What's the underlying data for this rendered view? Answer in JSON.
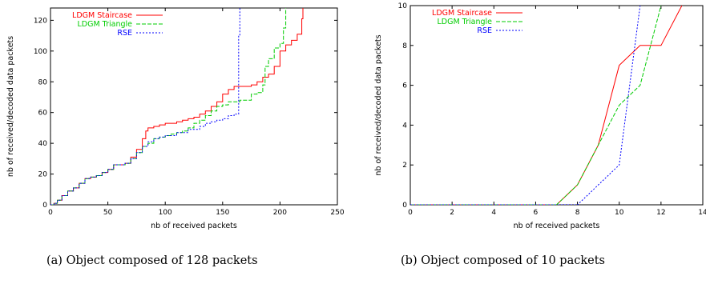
{
  "chart_data": [
    {
      "type": "line",
      "caption": "(a) Object composed of 128 packets",
      "xlabel": "nb of received packets",
      "ylabel": "nb of received/decoded data packets",
      "xlim": [
        0,
        250
      ],
      "ylim": [
        0,
        128
      ],
      "xticks": [
        0,
        50,
        100,
        150,
        200,
        250
      ],
      "yticks": [
        0,
        20,
        40,
        60,
        80,
        100,
        120
      ],
      "grid": false,
      "legend_position": "top-left",
      "series": [
        {
          "name": "LDGM Staircase",
          "color": "#ff0000",
          "dash": "solid",
          "step": true,
          "points": [
            [
              0,
              0
            ],
            [
              3,
              1
            ],
            [
              6,
              3
            ],
            [
              10,
              6
            ],
            [
              15,
              9
            ],
            [
              20,
              11
            ],
            [
              25,
              14
            ],
            [
              30,
              17
            ],
            [
              35,
              18
            ],
            [
              40,
              19
            ],
            [
              45,
              21
            ],
            [
              50,
              23
            ],
            [
              55,
              26
            ],
            [
              60,
              26
            ],
            [
              65,
              27
            ],
            [
              70,
              31
            ],
            [
              75,
              36
            ],
            [
              80,
              43
            ],
            [
              83,
              48
            ],
            [
              85,
              50
            ],
            [
              90,
              51
            ],
            [
              95,
              52
            ],
            [
              100,
              53
            ],
            [
              110,
              54
            ],
            [
              115,
              55
            ],
            [
              120,
              56
            ],
            [
              125,
              57
            ],
            [
              130,
              59
            ],
            [
              135,
              61
            ],
            [
              140,
              64
            ],
            [
              145,
              67
            ],
            [
              150,
              72
            ],
            [
              155,
              75
            ],
            [
              160,
              77
            ],
            [
              170,
              77
            ],
            [
              175,
              78
            ],
            [
              180,
              80
            ],
            [
              185,
              83
            ],
            [
              190,
              85
            ],
            [
              195,
              90
            ],
            [
              200,
              100
            ],
            [
              205,
              104
            ],
            [
              210,
              107
            ],
            [
              215,
              111
            ],
            [
              218,
              111
            ],
            [
              219,
              121
            ],
            [
              220,
              128
            ]
          ]
        },
        {
          "name": "LDGM Triangle",
          "color": "#00cc00",
          "dash": "5,2",
          "step": true,
          "points": [
            [
              0,
              0
            ],
            [
              3,
              1
            ],
            [
              6,
              3
            ],
            [
              10,
              6
            ],
            [
              15,
              9
            ],
            [
              20,
              11
            ],
            [
              25,
              14
            ],
            [
              30,
              17
            ],
            [
              35,
              18
            ],
            [
              40,
              19
            ],
            [
              45,
              21
            ],
            [
              50,
              23
            ],
            [
              55,
              26
            ],
            [
              60,
              26
            ],
            [
              65,
              27
            ],
            [
              70,
              30
            ],
            [
              75,
              34
            ],
            [
              80,
              38
            ],
            [
              85,
              40
            ],
            [
              90,
              43
            ],
            [
              95,
              44
            ],
            [
              100,
              45
            ],
            [
              105,
              46
            ],
            [
              110,
              47
            ],
            [
              115,
              48
            ],
            [
              120,
              50
            ],
            [
              125,
              53
            ],
            [
              130,
              55
            ],
            [
              135,
              58
            ],
            [
              140,
              61
            ],
            [
              145,
              64
            ],
            [
              150,
              65
            ],
            [
              155,
              67
            ],
            [
              165,
              68
            ],
            [
              170,
              68
            ],
            [
              175,
              72
            ],
            [
              180,
              73
            ],
            [
              185,
              78
            ],
            [
              187,
              90
            ],
            [
              190,
              95
            ],
            [
              195,
              102
            ],
            [
              200,
              105
            ],
            [
              203,
              115
            ],
            [
              205,
              128
            ]
          ]
        },
        {
          "name": "RSE",
          "color": "#0000ff",
          "dash": "2,2",
          "step": true,
          "points": [
            [
              0,
              0
            ],
            [
              3,
              1
            ],
            [
              6,
              3
            ],
            [
              10,
              6
            ],
            [
              15,
              9
            ],
            [
              20,
              11
            ],
            [
              25,
              14
            ],
            [
              30,
              17
            ],
            [
              35,
              18
            ],
            [
              40,
              19
            ],
            [
              45,
              21
            ],
            [
              50,
              23
            ],
            [
              55,
              26
            ],
            [
              60,
              26
            ],
            [
              65,
              27
            ],
            [
              70,
              30
            ],
            [
              75,
              34
            ],
            [
              80,
              38
            ],
            [
              85,
              41
            ],
            [
              90,
              43
            ],
            [
              95,
              44
            ],
            [
              100,
              45
            ],
            [
              110,
              47
            ],
            [
              120,
              49
            ],
            [
              125,
              49
            ],
            [
              130,
              51
            ],
            [
              135,
              53
            ],
            [
              140,
              54
            ],
            [
              145,
              55
            ],
            [
              150,
              56
            ],
            [
              155,
              58
            ],
            [
              160,
              59
            ],
            [
              163,
              59
            ],
            [
              164,
              80
            ],
            [
              164,
              110
            ],
            [
              165,
              128
            ]
          ]
        }
      ]
    },
    {
      "type": "line",
      "caption": "(b) Object composed of 10 packets",
      "xlabel": "nb of received packets",
      "ylabel": "nb of received/decoded data packets",
      "xlim": [
        0,
        14
      ],
      "ylim": [
        0,
        10
      ],
      "xticks": [
        0,
        2,
        4,
        6,
        8,
        10,
        12,
        14
      ],
      "yticks": [
        0,
        2,
        4,
        6,
        8,
        10
      ],
      "grid": false,
      "legend_position": "top-left",
      "series": [
        {
          "name": "LDGM Staircase",
          "color": "#ff0000",
          "dash": "solid",
          "step": false,
          "points": [
            [
              0,
              0
            ],
            [
              7,
              0
            ],
            [
              8,
              1
            ],
            [
              9,
              3
            ],
            [
              10,
              7
            ],
            [
              11,
              8
            ],
            [
              12,
              8
            ],
            [
              13,
              10
            ]
          ]
        },
        {
          "name": "LDGM Triangle",
          "color": "#00cc00",
          "dash": "5,2",
          "step": false,
          "points": [
            [
              0,
              0
            ],
            [
              7,
              0
            ],
            [
              8,
              1
            ],
            [
              9,
              3
            ],
            [
              10,
              5
            ],
            [
              11,
              6
            ],
            [
              12,
              10
            ]
          ]
        },
        {
          "name": "RSE",
          "color": "#0000ff",
          "dash": "2,2",
          "step": false,
          "points": [
            [
              0,
              0
            ],
            [
              8,
              0
            ],
            [
              10,
              2
            ],
            [
              11,
              10
            ]
          ]
        }
      ]
    }
  ]
}
